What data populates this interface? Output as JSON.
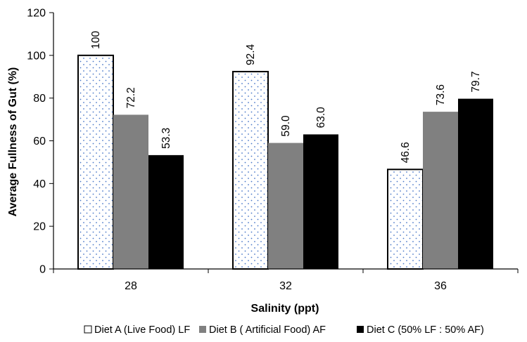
{
  "chart_data": {
    "type": "bar",
    "title": "",
    "xlabel": "Salinity (ppt)",
    "ylabel": "Average Fullness of Gut (%)",
    "categories": [
      "28",
      "32",
      "36"
    ],
    "ylim": [
      0,
      120
    ],
    "yticks": [
      "0",
      "20",
      "40",
      "60",
      "80",
      "100",
      "120"
    ],
    "grid": false,
    "legend_position": "bottom",
    "series": [
      {
        "name": "Diet A (Live Food) LF",
        "values": [
          100,
          92.4,
          46.6
        ],
        "labels": [
          "100",
          "92.4",
          "46.6"
        ],
        "fill": "dotted",
        "color": "#ffffff",
        "dot_color": "#4a78c8"
      },
      {
        "name": "Diet B ( Artificial Food) AF",
        "values": [
          72.2,
          59.0,
          73.6
        ],
        "labels": [
          "72.2",
          "59.0",
          "73.6"
        ],
        "fill": "solid",
        "color": "#808080"
      },
      {
        "name": "Diet C (50% LF : 50% AF)",
        "values": [
          53.3,
          63.0,
          79.7
        ],
        "labels": [
          "53.3",
          "63.0",
          "79.7"
        ],
        "fill": "solid",
        "color": "#000000"
      }
    ]
  }
}
